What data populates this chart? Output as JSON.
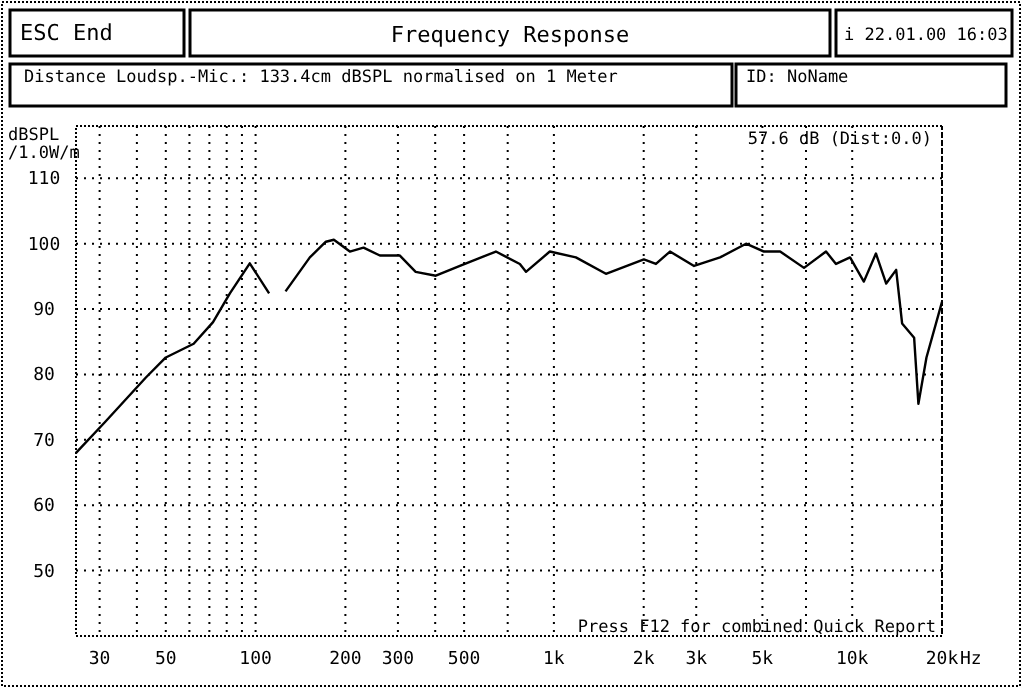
{
  "chart_data": {
    "type": "line",
    "title": "Frequency Response",
    "ylabel": "dBSPL /1.0W/m",
    "annotations": [
      "ESC End",
      "i 22.01.00 16:03",
      "Distance Loudsp.-Mic.: 133.4cm dBSPL normalised on 1 Meter",
      "ID: NoName",
      "57.6 dB (Dist:0.0)",
      "Press F12 for combined Quick Report"
    ],
    "log": "x",
    "grid": true,
    "line_style": "solid",
    "marker": "none",
    "xlim": [
      25,
      20000
    ],
    "ylim": [
      40,
      118
    ],
    "xticks": [
      30,
      {
        "value": 40,
        "label": null
      },
      50,
      {
        "value": 60,
        "label": null
      },
      {
        "value": 70,
        "label": null
      },
      {
        "value": 80,
        "label": null
      },
      {
        "value": 90,
        "label": null
      },
      100,
      200,
      300,
      {
        "value": 400,
        "label": null
      },
      500,
      {
        "value": 700,
        "label": null
      },
      {
        "value": 1000,
        "label": "1k"
      },
      {
        "value": 2000,
        "label": "2k"
      },
      {
        "value": 3000,
        "label": "3k"
      },
      {
        "value": 5000,
        "label": "5k"
      },
      {
        "value": 7000,
        "label": null
      },
      {
        "value": 10000,
        "label": "10k"
      },
      {
        "value": 20000,
        "label": "20k"
      }
    ],
    "xlabel": "Hz",
    "yticks": [
      50,
      60,
      70,
      80,
      90,
      100,
      110
    ],
    "series": [
      {
        "color": "#000000",
        "x": [
          25,
          31.4,
          42.8,
          50,
          62,
          72,
          82,
          95.6,
          111,
          118,
          126,
          152,
          172,
          183,
          207,
          230,
          261,
          304,
          344,
          402,
          484,
          639,
          769,
          806,
          969,
          1185,
          1494,
          2003,
          2198,
          2450,
          2950,
          3606,
          4406,
          5060,
          5734,
          6893,
          8170,
          8824,
          9836,
          10940,
          12010,
          13000,
          14040,
          14700,
          16130,
          16670,
          17740,
          20000
        ],
        "values": [
          68,
          72.8,
          79.5,
          82.6,
          84.7,
          88,
          92.4,
          97,
          92.4,
          null,
          92.7,
          97.9,
          100.3,
          100.6,
          98.8,
          99.4,
          98.2,
          98.2,
          95.7,
          95.1,
          96.6,
          98.8,
          96.9,
          95.7,
          98.8,
          97.9,
          95.4,
          97.6,
          96.9,
          98.8,
          96.6,
          97.9,
          100,
          98.8,
          98.8,
          96.3,
          98.8,
          96.9,
          97.9,
          94.2,
          98.5,
          93.9,
          96,
          87.8,
          85.6,
          75.5,
          82.6,
          91.1
        ]
      }
    ]
  }
}
